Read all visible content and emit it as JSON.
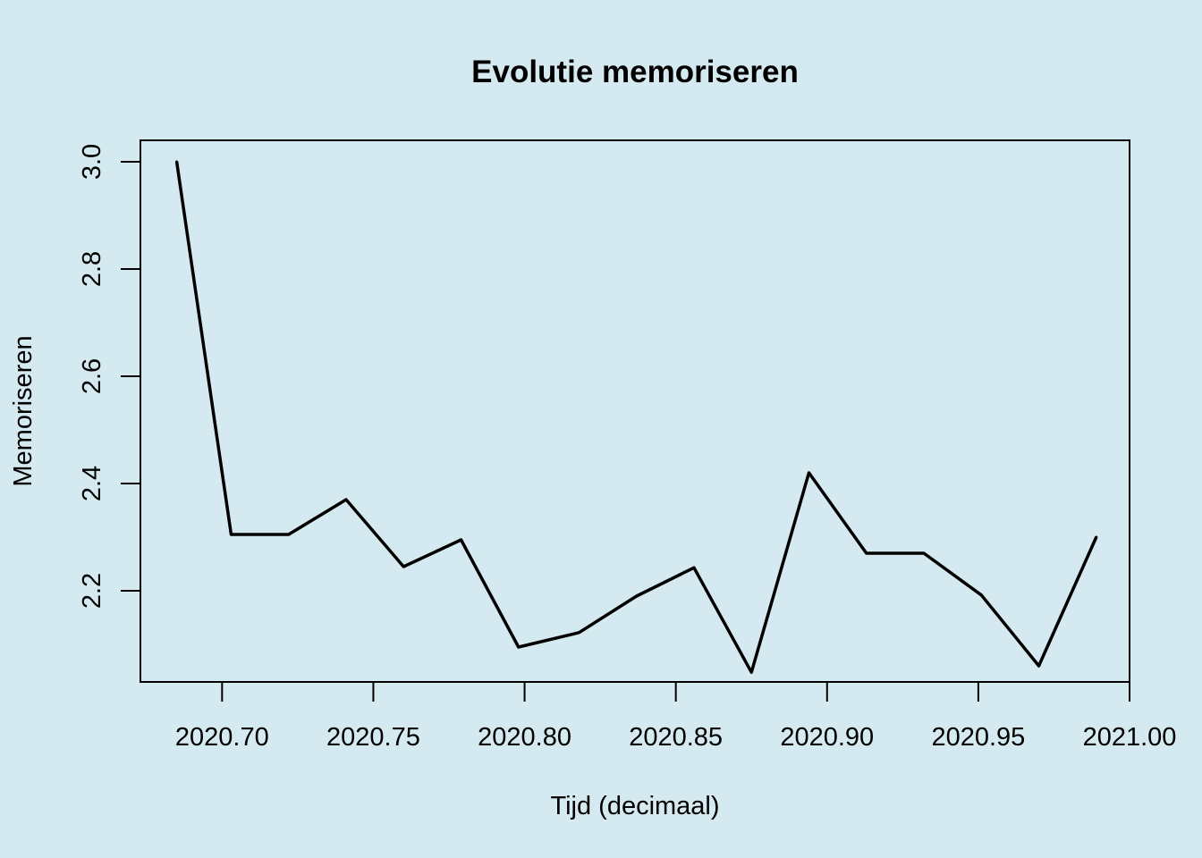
{
  "chart_data": {
    "type": "line",
    "title": "Evolutie memoriseren",
    "xlabel": "Tijd (decimaal)",
    "ylabel": "Memoriseren",
    "xlim": [
      2020.673,
      2021.0
    ],
    "ylim": [
      2.03,
      3.04
    ],
    "xticks": [
      2020.7,
      2020.75,
      2020.8,
      2020.85,
      2020.9,
      2020.95,
      2021.0
    ],
    "xtick_labels": [
      "2020.70",
      "2020.75",
      "2020.80",
      "2020.85",
      "2020.90",
      "2020.95",
      "2021.00"
    ],
    "yticks": [
      2.2,
      2.4,
      2.6,
      2.8,
      3.0
    ],
    "ytick_labels": [
      "2.2",
      "2.4",
      "2.6",
      "2.8",
      "3.0"
    ],
    "grid": false,
    "legend": "none",
    "line_color": "#000000",
    "series": [
      {
        "x": [
          2020.685,
          2020.703,
          2020.722,
          2020.741,
          2020.76,
          2020.779,
          2020.798,
          2020.818,
          2020.837,
          2020.856,
          2020.875,
          2020.894,
          2020.913,
          2020.932,
          2020.951,
          2020.97,
          2020.989
        ],
        "values": [
          3.0,
          2.305,
          2.305,
          2.37,
          2.245,
          2.295,
          2.095,
          2.122,
          2.19,
          2.243,
          2.048,
          2.42,
          2.27,
          2.27,
          2.192,
          2.06,
          2.3
        ]
      }
    ]
  }
}
